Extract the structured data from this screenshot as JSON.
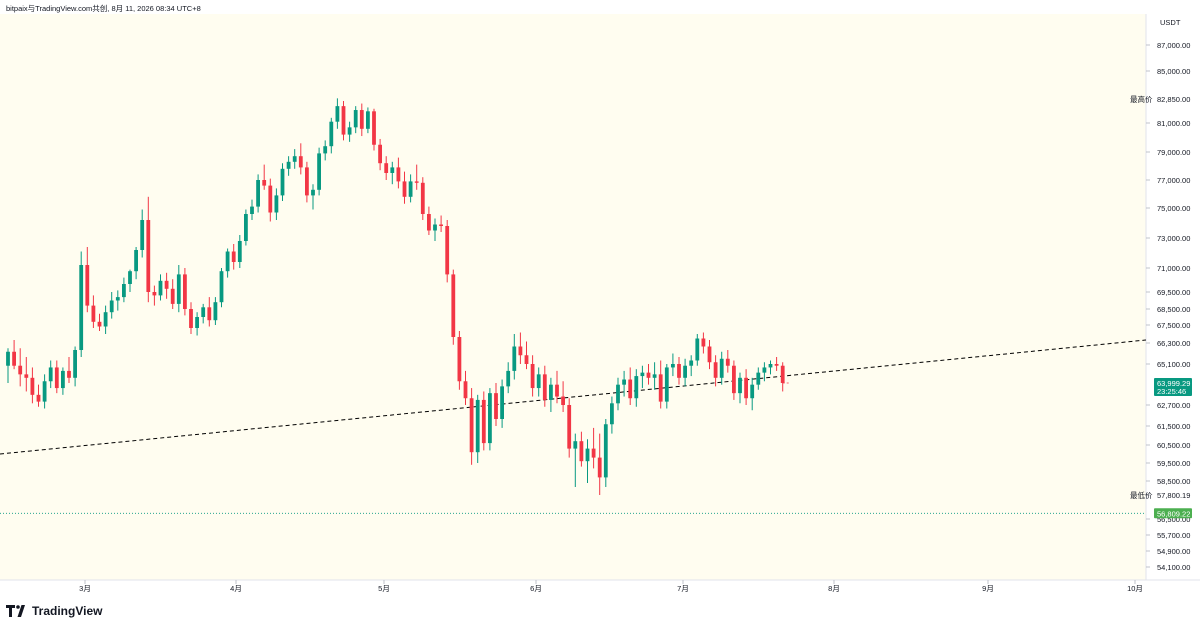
{
  "header": {
    "watermark": "bitpaix与TradingView.com共创, 8月 11, 2026 08:34 UTC+8"
  },
  "footer": {
    "brand": "TradingView"
  },
  "colors": {
    "up": "#089981",
    "down": "#f23645",
    "background": "#fffdf0",
    "trendline": "#000000"
  },
  "chart_data": {
    "type": "candlestick",
    "currency_label": "USDT",
    "y_ticks": [
      "87,000.00",
      "85,000.00",
      "81,000.00",
      "79,000.00",
      "77,000.00",
      "75,000.00",
      "73,000.00",
      "71,000.00",
      "69,500.00",
      "68,500.00",
      "67,500.00",
      "66,300.00",
      "65,100.00",
      "62,700.00",
      "61,500.00",
      "60,500.00",
      "59,500.00",
      "58,500.00",
      "57,800.00",
      "56,500.00",
      "55,700.00",
      "54,900.00",
      "54,100.00"
    ],
    "x_ticks": [
      "3月",
      "4月",
      "5月",
      "6月",
      "7月",
      "8月",
      "9月",
      "10月"
    ],
    "high_marker": {
      "label": "最高价",
      "value": "82,850.00"
    },
    "low_marker": {
      "label": "最低价",
      "value": "57,800.19"
    },
    "last_price": {
      "value": "63,999.29",
      "countdown": "23:25:46"
    },
    "support_level": {
      "value": "56,809.22"
    },
    "trendline": {
      "style": "dashed",
      "from": [
        0,
        60000
      ],
      "to": [
        1,
        66500
      ]
    },
    "ohlc": [
      [
        65000,
        66000,
        64000,
        65800
      ],
      [
        65800,
        66500,
        64800,
        65000
      ],
      [
        65000,
        66000,
        63800,
        64500
      ],
      [
        64500,
        65500,
        63500,
        64300
      ],
      [
        64300,
        64900,
        62800,
        63300
      ],
      [
        63300,
        63900,
        62600,
        62900
      ],
      [
        62900,
        64500,
        62500,
        64100
      ],
      [
        64100,
        65300,
        63700,
        64900
      ],
      [
        64900,
        65300,
        63400,
        63700
      ],
      [
        63700,
        64900,
        63300,
        64700
      ],
      [
        64700,
        65500,
        64000,
        64300
      ],
      [
        64300,
        66100,
        63800,
        65900
      ],
      [
        65900,
        72100,
        65500,
        71200
      ],
      [
        71200,
        72400,
        68300,
        68700
      ],
      [
        68700,
        69300,
        67300,
        67700
      ],
      [
        67700,
        68200,
        67100,
        67400
      ],
      [
        67400,
        68700,
        66900,
        68300
      ],
      [
        68300,
        69500,
        67900,
        69000
      ],
      [
        69000,
        69600,
        68400,
        69200
      ],
      [
        69200,
        70400,
        68900,
        70000
      ],
      [
        70000,
        70900,
        69500,
        70800
      ],
      [
        70800,
        72400,
        70300,
        72200
      ],
      [
        72200,
        74900,
        71700,
        74200
      ],
      [
        74200,
        75800,
        68900,
        69500
      ],
      [
        69500,
        69900,
        68700,
        69300
      ],
      [
        69300,
        70600,
        69000,
        70200
      ],
      [
        70200,
        70700,
        69100,
        69700
      ],
      [
        69700,
        70300,
        68500,
        68800
      ],
      [
        68800,
        71200,
        68300,
        70600
      ],
      [
        70600,
        71000,
        68100,
        68500
      ],
      [
        68500,
        68900,
        66900,
        67300
      ],
      [
        67300,
        68300,
        66800,
        68000
      ],
      [
        68000,
        68800,
        67600,
        68600
      ],
      [
        68600,
        69200,
        67400,
        67800
      ],
      [
        67800,
        69200,
        67500,
        68900
      ],
      [
        68900,
        71000,
        68600,
        70800
      ],
      [
        70800,
        72300,
        70400,
        72100
      ],
      [
        72100,
        72600,
        70900,
        71400
      ],
      [
        71400,
        73200,
        71000,
        72800
      ],
      [
        72800,
        74900,
        72500,
        74600
      ],
      [
        74600,
        75600,
        74200,
        75100
      ],
      [
        75100,
        77400,
        74700,
        77000
      ],
      [
        77000,
        78100,
        76300,
        76600
      ],
      [
        76600,
        77100,
        74100,
        74700
      ],
      [
        74700,
        76400,
        74200,
        75900
      ],
      [
        75900,
        78200,
        75500,
        77800
      ],
      [
        77800,
        78700,
        77300,
        78300
      ],
      [
        78300,
        79200,
        77800,
        78700
      ],
      [
        78700,
        79600,
        77400,
        77900
      ],
      [
        77900,
        78300,
        75400,
        75900
      ],
      [
        75900,
        76700,
        74900,
        76300
      ],
      [
        76300,
        79300,
        75900,
        78900
      ],
      [
        78900,
        79800,
        78400,
        79400
      ],
      [
        79400,
        81400,
        78900,
        81100
      ],
      [
        81100,
        82900,
        80600,
        82300
      ],
      [
        82300,
        82700,
        79800,
        80200
      ],
      [
        80200,
        81100,
        79700,
        80700
      ],
      [
        80700,
        82300,
        80300,
        82000
      ],
      [
        82000,
        82500,
        80100,
        80600
      ],
      [
        80600,
        82200,
        80300,
        81900
      ],
      [
        81900,
        82100,
        79100,
        79500
      ],
      [
        79500,
        79900,
        77700,
        78200
      ],
      [
        78200,
        78700,
        77000,
        77500
      ],
      [
        77500,
        78300,
        76700,
        77900
      ],
      [
        77900,
        78600,
        76400,
        76900
      ],
      [
        76900,
        77600,
        75300,
        75800
      ],
      [
        75800,
        77400,
        75400,
        76900
      ],
      [
        76900,
        78100,
        76300,
        76800
      ],
      [
        76800,
        77200,
        74200,
        74600
      ],
      [
        74600,
        75100,
        73200,
        73500
      ],
      [
        73500,
        74300,
        72800,
        73900
      ],
      [
        73900,
        74500,
        73400,
        73800
      ],
      [
        73800,
        74200,
        70100,
        70600
      ],
      [
        70600,
        70900,
        66200,
        66700
      ],
      [
        66700,
        67100,
        63600,
        64100
      ],
      [
        64100,
        64700,
        62700,
        63100
      ],
      [
        63100,
        63700,
        59400,
        60100
      ],
      [
        60100,
        63300,
        59500,
        63000
      ],
      [
        63000,
        63500,
        60200,
        60600
      ],
      [
        60600,
        63700,
        60200,
        63400
      ],
      [
        63400,
        64000,
        61500,
        61900
      ],
      [
        61900,
        64200,
        61400,
        63800
      ],
      [
        63800,
        65200,
        63400,
        64700
      ],
      [
        64700,
        66900,
        64200,
        66100
      ],
      [
        66100,
        67000,
        65100,
        65600
      ],
      [
        65600,
        66400,
        64800,
        65100
      ],
      [
        65100,
        65600,
        63200,
        63700
      ],
      [
        63700,
        64900,
        63200,
        64500
      ],
      [
        64500,
        65000,
        62600,
        63000
      ],
      [
        63000,
        64300,
        62300,
        63900
      ],
      [
        63900,
        64700,
        62800,
        63200
      ],
      [
        63200,
        64100,
        62300,
        62700
      ],
      [
        62700,
        63100,
        59800,
        60300
      ],
      [
        60300,
        61100,
        58200,
        60700
      ],
      [
        60700,
        61200,
        59300,
        59600
      ],
      [
        59600,
        60800,
        58400,
        60300
      ],
      [
        60300,
        61400,
        59200,
        59800
      ],
      [
        59800,
        61100,
        57800,
        58700
      ],
      [
        58700,
        61900,
        58200,
        61600
      ],
      [
        61600,
        63200,
        61100,
        62800
      ],
      [
        62800,
        64300,
        62400,
        63900
      ],
      [
        63900,
        64700,
        63200,
        64200
      ],
      [
        64200,
        64900,
        62700,
        63100
      ],
      [
        63100,
        64800,
        62600,
        64400
      ],
      [
        64400,
        65000,
        63700,
        64600
      ],
      [
        64600,
        65100,
        63900,
        64300
      ],
      [
        64300,
        65200,
        63600,
        64500
      ],
      [
        64500,
        65300,
        62500,
        62900
      ],
      [
        62900,
        65100,
        62500,
        64900
      ],
      [
        64900,
        65700,
        64400,
        65100
      ],
      [
        65100,
        65500,
        63900,
        64300
      ],
      [
        64300,
        65400,
        63800,
        65000
      ],
      [
        65000,
        65600,
        64400,
        65300
      ],
      [
        65300,
        66900,
        65000,
        66600
      ],
      [
        66600,
        67000,
        65700,
        66100
      ],
      [
        66100,
        66500,
        64800,
        65200
      ],
      [
        65200,
        65600,
        63800,
        64300
      ],
      [
        64300,
        65800,
        63900,
        65400
      ],
      [
        65400,
        65900,
        64600,
        65000
      ],
      [
        65000,
        65300,
        63000,
        63400
      ],
      [
        63400,
        64600,
        62800,
        64300
      ],
      [
        64300,
        64800,
        62700,
        63100
      ],
      [
        63100,
        64300,
        62400,
        63900
      ],
      [
        63900,
        64900,
        63600,
        64600
      ],
      [
        64600,
        65200,
        64100,
        64900
      ],
      [
        64900,
        65300,
        64500,
        65100
      ],
      [
        65100,
        65500,
        64700,
        65000
      ],
      [
        65000,
        65200,
        63500,
        64000
      ]
    ]
  }
}
